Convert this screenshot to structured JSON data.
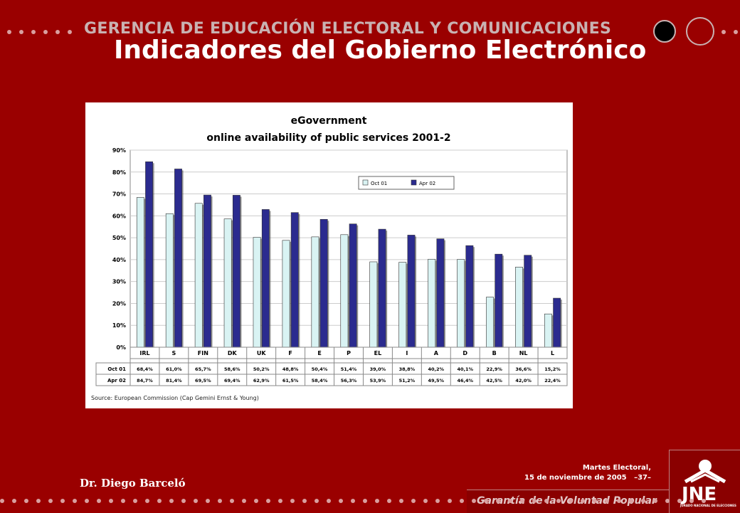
{
  "header": {
    "org": "GERENCIA DE EDUCACIÓN ELECTORAL Y COMUNICACIONES",
    "title": "Indicadores del Gobierno Electrónico"
  },
  "footer": {
    "date_line1": "Martes Electoral,",
    "date_line2": "15 de noviembre de 2005",
    "page": "–37–",
    "author": "Dr.  Diego Barceló",
    "tagline": "Garantía de la Voluntad Popular",
    "logo": "JNE",
    "logo_sub": "JURADO NACIONAL DE ELECCIONES"
  },
  "chart_data": {
    "type": "bar",
    "title": "eGovernment",
    "subtitle": "online availability of public services 2001-2",
    "source": "Source: European Commission (Cap Gemini Ernst & Young)",
    "ylim": [
      0,
      90
    ],
    "yticks": [
      "0%",
      "10%",
      "20%",
      "30%",
      "40%",
      "50%",
      "60%",
      "70%",
      "80%",
      "90%"
    ],
    "categories": [
      "IRL",
      "S",
      "FIN",
      "DK",
      "UK",
      "F",
      "E",
      "P",
      "EL",
      "I",
      "A",
      "D",
      "B",
      "NL",
      "L"
    ],
    "legend_position": "top-right",
    "series": [
      {
        "name": "Oct 01",
        "color": "#d9f3f3",
        "values": [
          68.4,
          61.0,
          65.7,
          58.6,
          50.2,
          48.8,
          50.4,
          51.4,
          39.0,
          38.8,
          40.2,
          40.1,
          22.9,
          36.6,
          15.2
        ],
        "labels": [
          "68,4%",
          "61,0%",
          "65,7%",
          "58,6%",
          "50,2%",
          "48,8%",
          "50,4%",
          "51,4%",
          "39,0%",
          "38,8%",
          "40,2%",
          "40,1%",
          "22,9%",
          "36,6%",
          "15,2%"
        ]
      },
      {
        "name": "Apr 02",
        "color": "#2b2b8f",
        "values": [
          84.7,
          81.4,
          69.5,
          69.4,
          62.9,
          61.5,
          58.4,
          56.3,
          53.9,
          51.2,
          49.5,
          46.4,
          42.5,
          42.0,
          22.4
        ],
        "labels": [
          "84,7%",
          "81,4%",
          "69,5%",
          "69,4%",
          "62,9%",
          "61,5%",
          "58,4%",
          "56,3%",
          "53,9%",
          "51,2%",
          "49,5%",
          "46,4%",
          "42,5%",
          "42,0%",
          "22,4%"
        ]
      }
    ],
    "grid": true
  }
}
